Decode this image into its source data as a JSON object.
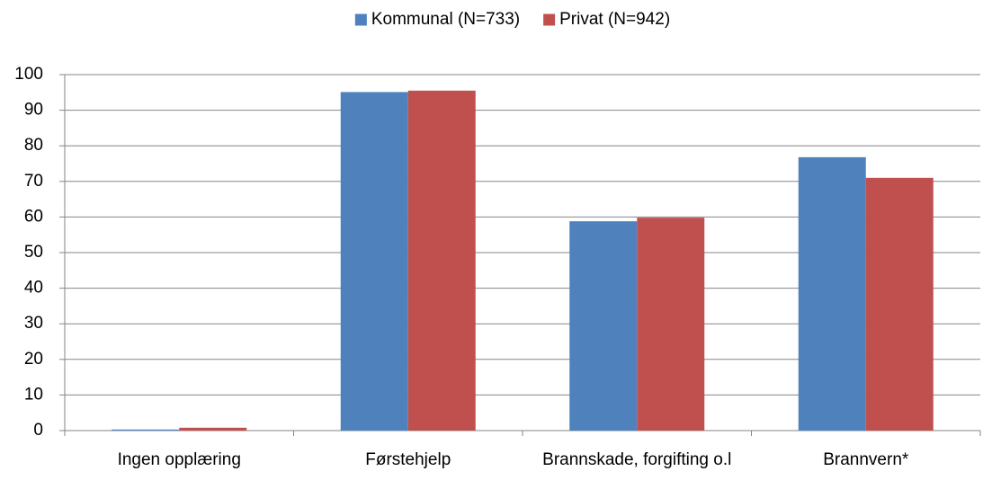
{
  "chart_data": {
    "type": "bar",
    "categories": [
      "Ingen opplæring",
      "Førstehjelp",
      "Brannskade, forgifting o.l",
      "Brannvern*"
    ],
    "series": [
      {
        "name": "Kommunal (N=733)",
        "color": "#4f81bd",
        "values": [
          0.3,
          95.1,
          58.8,
          76.8
        ]
      },
      {
        "name": "Privat (N=942)",
        "color": "#c0504d",
        "values": [
          0.8,
          95.5,
          59.8,
          71.0
        ]
      }
    ],
    "ylim": [
      0,
      100
    ],
    "yticks": [
      0,
      10,
      20,
      30,
      40,
      50,
      60,
      70,
      80,
      90,
      100
    ],
    "grid": true,
    "legend": "top"
  }
}
